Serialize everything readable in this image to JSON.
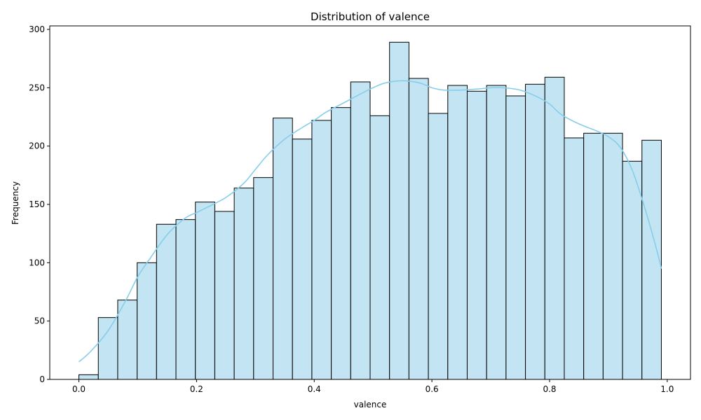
{
  "chart_data": {
    "type": "bar",
    "title": "Distribution of valence",
    "xlabel": "valence",
    "ylabel": "Frequency",
    "xlim": [
      -0.0495,
      1.0395
    ],
    "ylim": [
      0,
      303
    ],
    "x_ticks": [
      0.0,
      0.2,
      0.4,
      0.6,
      0.8,
      1.0
    ],
    "x_tick_labels": [
      "0.0",
      "0.2",
      "0.4",
      "0.6",
      "0.8",
      "1.0"
    ],
    "y_ticks": [
      0,
      50,
      100,
      150,
      200,
      250,
      300
    ],
    "y_tick_labels": [
      "0",
      "50",
      "100",
      "150",
      "200",
      "250",
      "300"
    ],
    "bin_start": 0.0,
    "bin_width": 0.033,
    "values": [
      4,
      53,
      68,
      100,
      133,
      137,
      152,
      144,
      164,
      173,
      224,
      206,
      222,
      233,
      255,
      226,
      289,
      258,
      228,
      252,
      247,
      252,
      243,
      253,
      259,
      207,
      211,
      211,
      187,
      205
    ],
    "kde": {
      "x": [
        0.0,
        0.02,
        0.05,
        0.08,
        0.1,
        0.12,
        0.15,
        0.18,
        0.2,
        0.22,
        0.25,
        0.28,
        0.3,
        0.32,
        0.35,
        0.38,
        0.4,
        0.42,
        0.45,
        0.48,
        0.5,
        0.52,
        0.55,
        0.58,
        0.6,
        0.62,
        0.65,
        0.68,
        0.7,
        0.72,
        0.75,
        0.78,
        0.8,
        0.82,
        0.85,
        0.88,
        0.9,
        0.92,
        0.94,
        0.96,
        0.98,
        0.99
      ],
      "y": [
        15,
        24,
        42,
        68,
        88,
        103,
        124,
        138,
        143,
        148,
        156,
        168,
        180,
        192,
        206,
        216,
        222,
        229,
        237,
        245,
        250,
        254,
        256,
        254,
        250,
        248,
        248,
        249,
        250,
        250,
        248,
        242,
        236,
        227,
        219,
        213,
        208,
        199,
        180,
        150,
        115,
        95
      ]
    },
    "colors": {
      "bar_fill": "#c2e4f3",
      "bar_edge": "#000000",
      "kde_line": "#87ceeb"
    },
    "grid": false,
    "legend": "none"
  }
}
